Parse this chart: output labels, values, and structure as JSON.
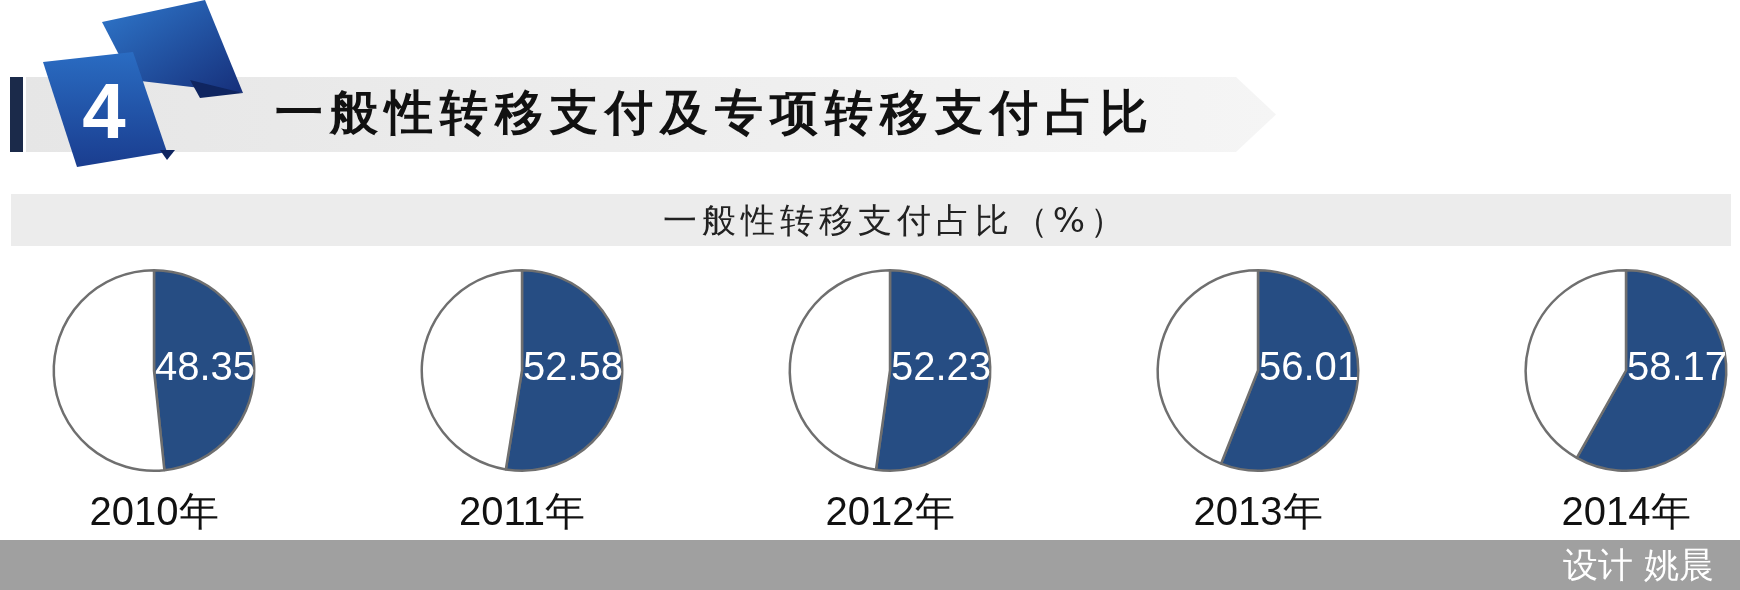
{
  "chart_data": [
    {
      "type": "other",
      "title": "一般性转移支付及专项转移支付占比",
      "subtitle": "一般性转移支付占比（%）",
      "annotations": [
        "4",
        "设计 姚晨"
      ]
    },
    {
      "type": "pie",
      "title": "2010年",
      "categories": [
        null,
        null
      ],
      "values": [
        48.35,
        51.65
      ],
      "colors": [
        "#264d83",
        "#ffffff"
      ],
      "value_labels": [
        "48.35",
        null
      ]
    },
    {
      "type": "pie",
      "title": "2011年",
      "categories": [
        null,
        null
      ],
      "values": [
        52.58,
        47.42
      ],
      "colors": [
        "#264d83",
        "#ffffff"
      ],
      "value_labels": [
        "52.58",
        null
      ]
    },
    {
      "type": "pie",
      "title": "2012年",
      "categories": [
        null,
        null
      ],
      "values": [
        52.23,
        47.77
      ],
      "colors": [
        "#264d83",
        "#ffffff"
      ],
      "value_labels": [
        "52.23",
        null
      ]
    },
    {
      "type": "pie",
      "title": "2013年",
      "categories": [
        null,
        null
      ],
      "values": [
        56.01,
        43.99
      ],
      "colors": [
        "#264d83",
        "#ffffff"
      ],
      "value_labels": [
        "56.01",
        null
      ]
    },
    {
      "type": "pie",
      "title": "2014年",
      "categories": [
        null,
        null
      ],
      "values": [
        58.17,
        41.83
      ],
      "colors": [
        "#264d83",
        "#ffffff"
      ],
      "value_labels": [
        "58.17",
        null
      ]
    }
  ]
}
